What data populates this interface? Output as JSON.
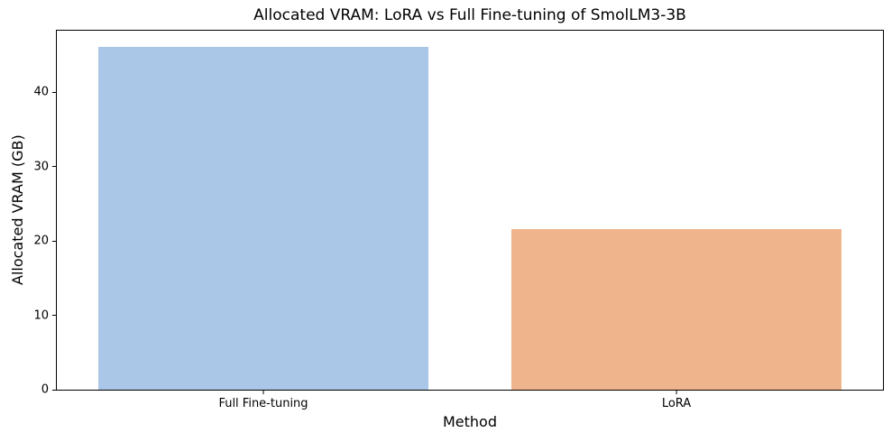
{
  "figure": {
    "background": "#ffffff",
    "text_color": "#000000"
  },
  "chart_data": {
    "type": "bar",
    "title": "Allocated VRAM: LoRA vs Full Fine-tuning of SmolLM3-3B",
    "xlabel": "Method",
    "ylabel": "Allocated VRAM (GB)",
    "categories": [
      "Full Fine-tuning",
      "LoRA"
    ],
    "values": [
      46.1,
      21.6
    ],
    "bar_colors": [
      "#aac7e8",
      "#f0b48c"
    ],
    "ylim": [
      0,
      48.3
    ],
    "yticks": [
      0,
      10,
      20,
      30,
      40
    ],
    "grid": false,
    "legend": null,
    "bar_width_fraction": 0.8
  }
}
